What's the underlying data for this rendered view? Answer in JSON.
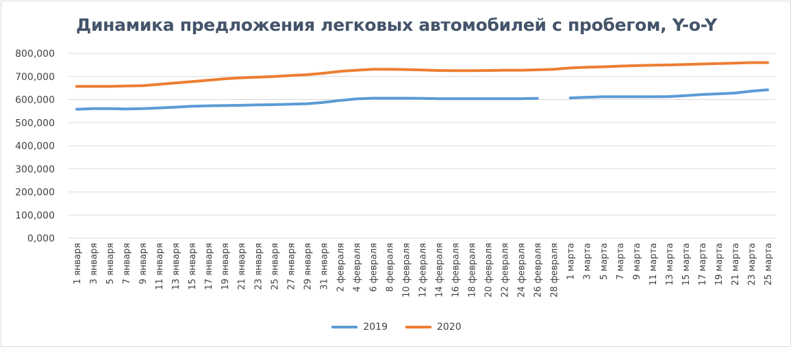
{
  "chart_data": {
    "type": "line",
    "title": "Динамика предложения легковых автомобилей с пробегом, Y-o-Y",
    "xlabel": "",
    "ylabel": "",
    "ylim": [
      0,
      800000
    ],
    "yticks": [
      0,
      100000,
      200000,
      300000,
      400000,
      500000,
      600000,
      700000,
      800000
    ],
    "ytick_labels": [
      "0,000",
      "100,000",
      "200,000",
      "300,000",
      "400,000",
      "500,000",
      "600,000",
      "700,000",
      "800,000"
    ],
    "grid": true,
    "legend_position": "bottom",
    "categories": [
      "1 января",
      "3 января",
      "5 января",
      "7 января",
      "9 января",
      "11 января",
      "13 января",
      "15 января",
      "17 января",
      "19 января",
      "21 января",
      "23 января",
      "25 января",
      "27 января",
      "29 января",
      "31 января",
      "2 февраля",
      "4 февраля",
      "6 февраля",
      "8 февраля",
      "10 февраля",
      "12 февраля",
      "14 февраля",
      "16 февраля",
      "18 февраля",
      "20 февраля",
      "22 февраля",
      "24 февраля",
      "26 февраля",
      "28 февраля",
      "1 марта",
      "3 марта",
      "5 марта",
      "7 марта",
      "9 марта",
      "11 марта",
      "13 марта",
      "15 марта",
      "17 марта",
      "19 марта",
      "21 марта",
      "23 марта",
      "25 марта"
    ],
    "series": [
      {
        "name": "2019",
        "color": "#5b9bd5",
        "values": [
          558000,
          561000,
          561000,
          559000,
          561000,
          564000,
          567000,
          571000,
          573000,
          574000,
          575000,
          577000,
          578000,
          580000,
          582000,
          588000,
          596000,
          603000,
          606000,
          606000,
          606000,
          605000,
          604000,
          604000,
          604000,
          604000,
          604000,
          604000,
          605000,
          null,
          607000,
          610000,
          612000,
          612000,
          612000,
          612000,
          613000,
          617000,
          622000,
          625000,
          628000,
          636000,
          642000
        ]
      },
      {
        "name": "2020",
        "color": "#ed7d31",
        "values": [
          657000,
          657000,
          657000,
          659000,
          660000,
          666000,
          672000,
          678000,
          684000,
          690000,
          694000,
          697000,
          700000,
          704000,
          708000,
          714000,
          722000,
          727000,
          731000,
          731000,
          730000,
          728000,
          726000,
          725000,
          725000,
          726000,
          727000,
          727000,
          729000,
          731000,
          737000,
          740000,
          742000,
          745000,
          747000,
          749000,
          750000,
          752000,
          754000,
          756000,
          758000,
          760000,
          760000
        ]
      }
    ]
  }
}
